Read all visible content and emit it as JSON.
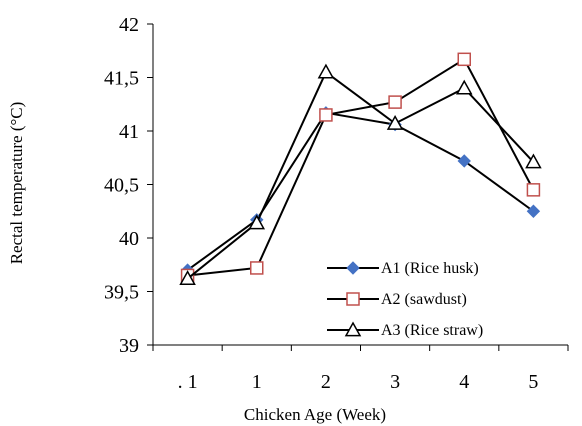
{
  "chart_data": {
    "type": "line",
    "categories": [
      ". 1",
      "1",
      "2",
      "3",
      "4",
      "5"
    ],
    "ylabel": "Rectal temperature   (°C)",
    "xlabel": "Chicken Age (Week)",
    "ylim": [
      39,
      42
    ],
    "yticks": [
      39,
      39.5,
      40,
      40.5,
      41,
      41.5,
      42
    ],
    "ytick_labels": [
      "39",
      "39,5",
      "40",
      "40,5",
      "41",
      "41,5",
      "42"
    ],
    "grid": false,
    "legend_position": "lower-right",
    "series": [
      {
        "name": "A1 (Rice husk)",
        "marker": "diamond",
        "color": "#4472C4",
        "values": [
          39.7,
          40.17,
          41.17,
          41.06,
          40.72,
          40.25
        ]
      },
      {
        "name": "A2 (sawdust)",
        "marker": "square",
        "color": "#C0504D",
        "values": [
          39.65,
          39.72,
          41.15,
          41.27,
          41.67,
          40.45
        ]
      },
      {
        "name": "A3 (Rice straw)",
        "marker": "triangle",
        "color": "#000000",
        "values": [
          39.62,
          40.14,
          41.55,
          41.07,
          41.4,
          40.71
        ]
      }
    ]
  }
}
